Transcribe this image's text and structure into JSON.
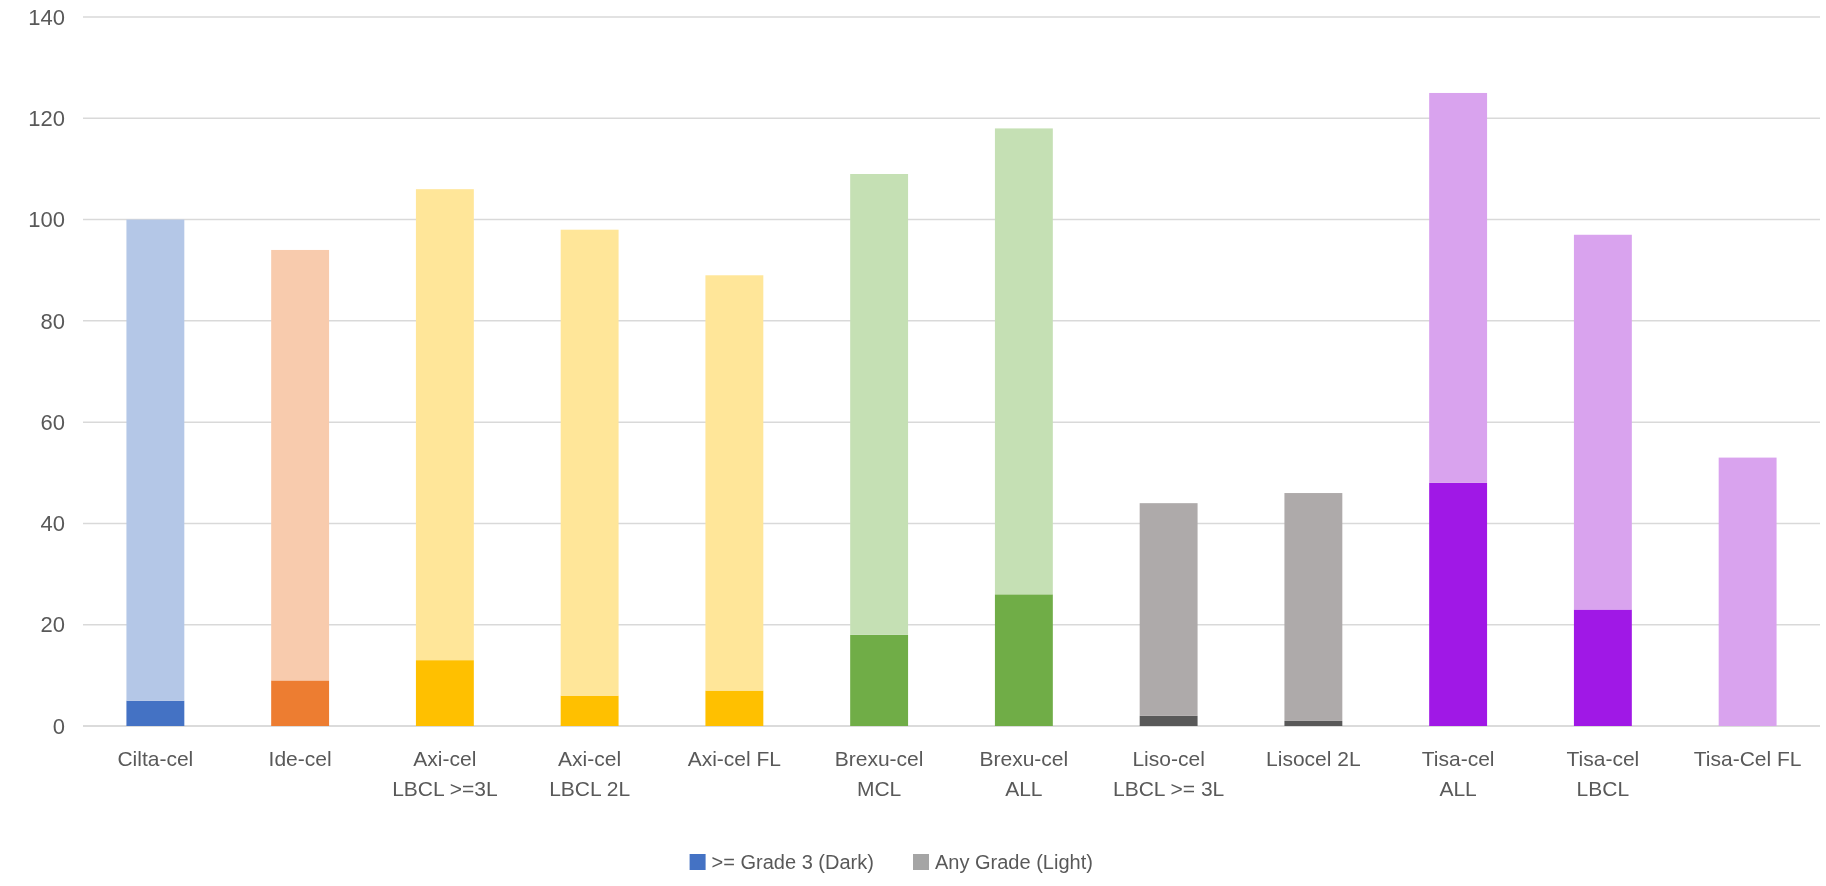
{
  "chart_data": {
    "type": "bar",
    "stacked": true,
    "categories": [
      "Cilta-cel",
      "Ide-cel",
      "Axi-cel LBCL >=3L",
      "Axi-cel LBCL 2L",
      "Axi-cel FL",
      "Brexu-cel MCL",
      "Brexu-cel ALL",
      "Liso-cel LBCL >= 3L",
      "Lisocel 2L",
      "Tisa-cel ALL",
      "Tisa-cel LBCL",
      "Tisa-Cel FL"
    ],
    "series": [
      {
        "name": ">= Grade 3 (Dark)",
        "color": "#4472c4",
        "values": [
          5,
          9,
          13,
          6,
          7,
          18,
          26,
          2,
          1,
          48,
          23,
          null
        ],
        "colors": [
          "#4472c4",
          "#ed7d31",
          "#ffc000",
          "#ffc000",
          "#ffc000",
          "#70ad47",
          "#70ad47",
          "#595959",
          "#595959",
          "#a018e6",
          "#a018e6",
          null
        ]
      },
      {
        "name": "Any Grade (Light)",
        "color": "#a5a5a5",
        "values": [
          95,
          85,
          93,
          92,
          82,
          91,
          92,
          42,
          45,
          77,
          74,
          53
        ],
        "colors": [
          "#b4c7e7",
          "#f8cbad",
          "#ffe699",
          "#ffe699",
          "#ffe699",
          "#c5e0b4",
          "#c5e0b4",
          "#aeaaaa",
          "#aeaaaa",
          "#d9a3ee",
          "#d9a3ee",
          "#d9a3ee"
        ]
      }
    ],
    "ylim": [
      0,
      140
    ],
    "yticks": [
      0,
      20,
      40,
      60,
      80,
      100,
      120,
      140
    ],
    "grid": "y",
    "legend": "bottom"
  }
}
